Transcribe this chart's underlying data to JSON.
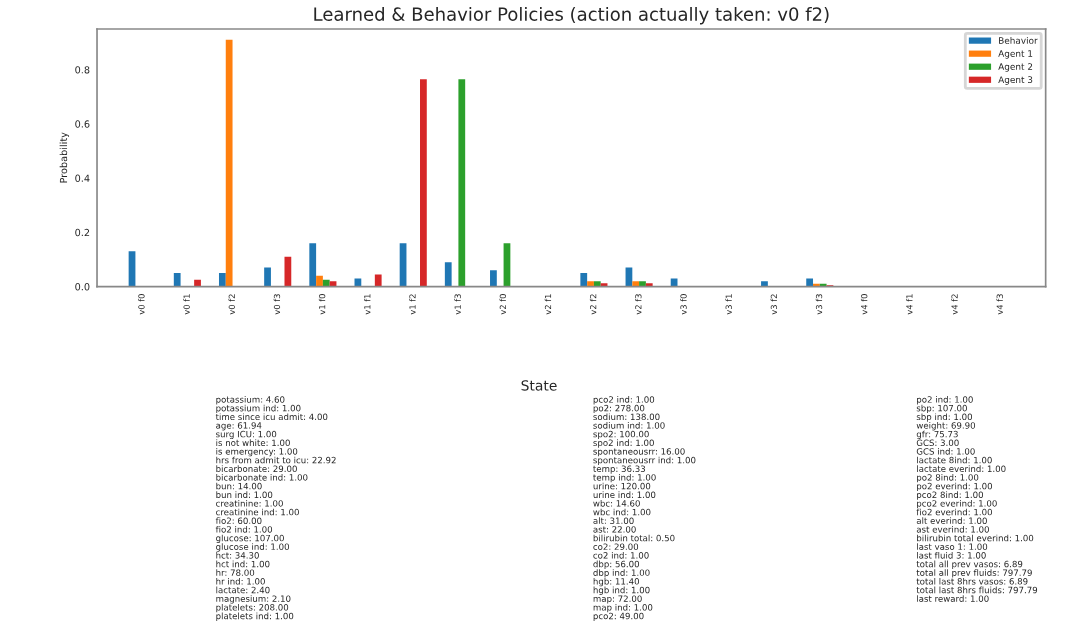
{
  "chart_data": [
    {
      "type": "bar",
      "title": "Learned & Behavior Policies (action actually taken: v0 f2)",
      "ylabel": "Probability",
      "categories": [
        "v0 f0",
        "v0 f1",
        "v0 f2",
        "v0 f3",
        "v1 f0",
        "v1 f1",
        "v1 f2",
        "v1 f3",
        "v2 f0",
        "v2 f1",
        "v2 f2",
        "v2 f3",
        "v3 f0",
        "v3 f1",
        "v3 f2",
        "v3 f3",
        "v4 f0",
        "v4 f1",
        "v4 f2",
        "v4 f3"
      ],
      "series": [
        {
          "name": "Behavior",
          "color": "#1f77b4",
          "values": [
            0.13,
            0.05,
            0.05,
            0.07,
            0.16,
            0.03,
            0.16,
            0.09,
            0.06,
            null,
            0.05,
            0.07,
            0.03,
            null,
            0.02,
            0.03,
            null,
            null,
            null,
            null
          ]
        },
        {
          "name": "Agent 1",
          "color": "#ff7f0e",
          "values": [
            null,
            null,
            0.91,
            null,
            0.04,
            null,
            null,
            null,
            null,
            null,
            0.02,
            0.02,
            null,
            null,
            null,
            0.01,
            null,
            null,
            null,
            null
          ]
        },
        {
          "name": "Agent 2",
          "color": "#2ca02c",
          "values": [
            null,
            null,
            null,
            null,
            0.025,
            null,
            null,
            0.765,
            0.16,
            null,
            0.02,
            0.02,
            null,
            null,
            null,
            0.01,
            null,
            null,
            null,
            null
          ]
        },
        {
          "name": "Agent 3",
          "color": "#d62728",
          "values": [
            null,
            0.025,
            null,
            0.11,
            0.02,
            0.045,
            0.765,
            null,
            null,
            null,
            0.012,
            0.012,
            null,
            null,
            null,
            0.005,
            null,
            null,
            null,
            null
          ]
        }
      ],
      "ylim": [
        0,
        0.95
      ],
      "yticks": [
        {
          "value": 0,
          "label": "0.0"
        },
        {
          "value": 0.2,
          "label": "0.2"
        },
        {
          "value": 0.4,
          "label": "0.4"
        },
        {
          "value": 0.6,
          "label": "0.6"
        },
        {
          "value": 0.8,
          "label": "0.8"
        }
      ],
      "legend": "top right",
      "grid": false
    },
    {
      "type": "other",
      "title": "State",
      "annotations": [
        "potassium: 4.60\npotassium ind: 1.00\ntime since icu admit: 4.00\nage: 61.94\nsurg ICU: 1.00\nis not white: 1.00\nis emergency: 1.00\nhrs from admit to icu: 22.92\nbicarbonate: 29.00\nbicarbonate ind: 1.00\nbun: 14.00\nbun ind: 1.00\ncreatinine: 1.00\ncreatinine ind: 1.00\nfio2: 60.00\nfio2 ind: 1.00\nglucose: 107.00\nglucose ind: 1.00\nhct: 34.30\nhct ind: 1.00\nhr: 78.00\nhr ind: 1.00\nlactate: 2.40\nmagnesium: 2.10\nplatelets: 208.00\nplatelets ind: 1.00",
        "pco2 ind: 1.00\npo2: 278.00\nsodium: 138.00\nsodium ind: 1.00\nspo2: 100.00\nspo2 ind: 1.00\nspontaneousrr: 16.00\nspontaneousrr ind: 1.00\ntemp: 36.33\ntemp ind: 1.00\nurine: 120.00\nurine ind: 1.00\nwbc: 14.60\nwbc ind: 1.00\nalt: 31.00\nast: 22.00\nbilirubin total: 0.50\nco2: 29.00\nco2 ind: 1.00\ndbp: 56.00\ndbp ind: 1.00\nhgb: 11.40\nhgb ind: 1.00\nmap: 72.00\nmap ind: 1.00\npco2: 49.00",
        "po2 ind: 1.00\nsbp: 107.00\nsbp ind: 1.00\nweight: 69.90\ngfr: 75.73\nGCS: 3.00\nGCS ind: 1.00\nlactate 8ind: 1.00\nlactate everind: 1.00\npo2 8ind: 1.00\npo2 everind: 1.00\npco2 8ind: 1.00\npco2 everind: 1.00\nfio2 everind: 1.00\nalt everind: 1.00\nast everind: 1.00\nbilirubin total everind: 1.00\nlast vaso 1: 1.00\nlast fluid 3: 1.00\ntotal all prev vasos: 6.89\ntotal all prev fluids: 797.79\ntotal last 8hrs vasos: 6.89\ntotal last 8hrs fluids: 797.79\nlast reward: 1.00"
      ]
    }
  ]
}
